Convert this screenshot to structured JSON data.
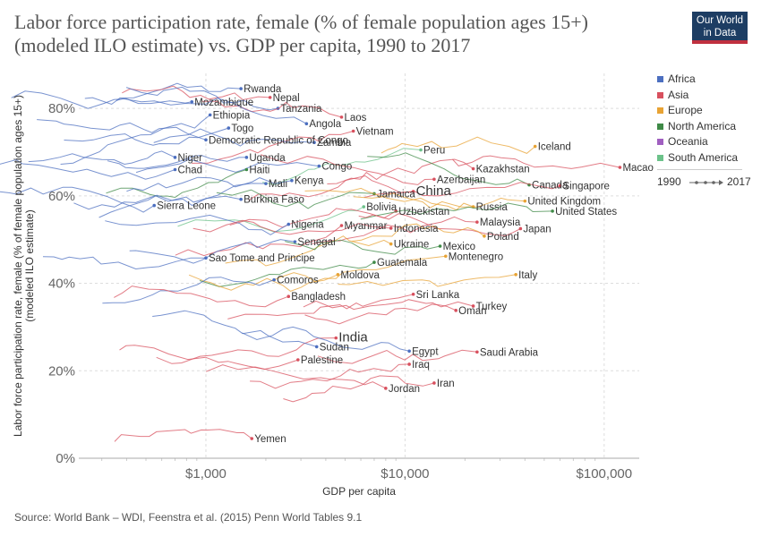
{
  "header": {
    "title": "Labor force participation rate, female (% of female population ages 15+) (modeled ILO estimate) vs. GDP per capita, 1990 to 2017",
    "logo_line1": "Our World",
    "logo_line2": "in Data"
  },
  "footer": {
    "source": "Source: World Bank – WDI, Feenstra et al. (2015) Penn World Tables 9.1"
  },
  "legend": {
    "items": [
      {
        "label": "Africa",
        "color": "#4c6fc0"
      },
      {
        "label": "Asia",
        "color": "#d8505e"
      },
      {
        "label": "Europe",
        "color": "#e8a334"
      },
      {
        "label": "North America",
        "color": "#3f8a47"
      },
      {
        "label": "Oceania",
        "color": "#a05fc0"
      },
      {
        "label": "South America",
        "color": "#6cc28a"
      }
    ],
    "timeline_start": "1990",
    "timeline_end": "2017"
  },
  "chart_data": {
    "type": "scatter",
    "xlabel": "GDP per capita",
    "ylabel": "Labor force participation rate, female (% of female population ages 15+) (modeled ILO estimate)",
    "xscale": "log",
    "xlim": [
      230,
      150000
    ],
    "ylim": [
      0,
      88
    ],
    "x_ticks": [
      {
        "value": 1000,
        "label": "$1,000"
      },
      {
        "value": 10000,
        "label": "$10,000"
      },
      {
        "value": 100000,
        "label": "$100,000"
      }
    ],
    "y_ticks": [
      {
        "value": 0,
        "label": "0%"
      },
      {
        "value": 20,
        "label": "20%"
      },
      {
        "value": 40,
        "label": "40%"
      },
      {
        "value": 60,
        "label": "60%"
      },
      {
        "value": 80,
        "label": "80%"
      }
    ],
    "grid": true,
    "legend_position": "right",
    "countries": [
      {
        "name": "Rwanda",
        "region": "Africa",
        "x": 1500,
        "y": 84.5,
        "big": false
      },
      {
        "name": "Nepal",
        "region": "Asia",
        "x": 2100,
        "y": 82.5,
        "big": false
      },
      {
        "name": "Mozambique",
        "region": "Africa",
        "x": 850,
        "y": 81.5,
        "big": false
      },
      {
        "name": "Tanzania",
        "region": "Africa",
        "x": 2300,
        "y": 80.0,
        "big": false
      },
      {
        "name": "Ethiopia",
        "region": "Africa",
        "x": 1050,
        "y": 78.5,
        "big": false
      },
      {
        "name": "Laos",
        "region": "Asia",
        "x": 4800,
        "y": 78.0,
        "big": false
      },
      {
        "name": "Angola",
        "region": "Africa",
        "x": 3200,
        "y": 76.5,
        "big": false
      },
      {
        "name": "Togo",
        "region": "Africa",
        "x": 1300,
        "y": 75.5,
        "big": false
      },
      {
        "name": "Vietnam",
        "region": "Asia",
        "x": 5500,
        "y": 74.8,
        "big": false
      },
      {
        "name": "Democratic Republic of Congo",
        "region": "Africa",
        "x": 1000,
        "y": 72.8,
        "big": false
      },
      {
        "name": "Zambia",
        "region": "Africa",
        "x": 3500,
        "y": 72.2,
        "big": false
      },
      {
        "name": "Peru",
        "region": "South America",
        "x": 12000,
        "y": 70.5,
        "big": false
      },
      {
        "name": "Iceland",
        "region": "Europe",
        "x": 45000,
        "y": 71.3,
        "big": false
      },
      {
        "name": "Niger",
        "region": "Africa",
        "x": 700,
        "y": 68.8,
        "big": false
      },
      {
        "name": "Uganda",
        "region": "Africa",
        "x": 1600,
        "y": 68.8,
        "big": false
      },
      {
        "name": "Macao",
        "region": "Asia",
        "x": 120000,
        "y": 66.5,
        "big": false
      },
      {
        "name": "Kazakhstan",
        "region": "Asia",
        "x": 22000,
        "y": 66.2,
        "big": false
      },
      {
        "name": "Congo",
        "region": "Africa",
        "x": 3700,
        "y": 66.8,
        "big": false
      },
      {
        "name": "Chad",
        "region": "Africa",
        "x": 700,
        "y": 66.0,
        "big": false
      },
      {
        "name": "Haiti",
        "region": "North America",
        "x": 1600,
        "y": 66.0,
        "big": false
      },
      {
        "name": "Azerbaijan",
        "region": "Asia",
        "x": 14000,
        "y": 63.8,
        "big": false
      },
      {
        "name": "Kenya",
        "region": "Africa",
        "x": 2700,
        "y": 63.5,
        "big": false
      },
      {
        "name": "Mali",
        "region": "Africa",
        "x": 2000,
        "y": 62.8,
        "big": false
      },
      {
        "name": "Canada",
        "region": "North America",
        "x": 42000,
        "y": 62.5,
        "big": false
      },
      {
        "name": "Singapore",
        "region": "Asia",
        "x": 60000,
        "y": 62.3,
        "big": false
      },
      {
        "name": "China",
        "region": "Asia",
        "x": 11000,
        "y": 61.0,
        "big": true
      },
      {
        "name": "Jamaica",
        "region": "North America",
        "x": 7000,
        "y": 60.5,
        "big": false
      },
      {
        "name": "Burkina Faso",
        "region": "Africa",
        "x": 1500,
        "y": 59.2,
        "big": false
      },
      {
        "name": "United Kingdom",
        "region": "Europe",
        "x": 40000,
        "y": 58.8,
        "big": false
      },
      {
        "name": "Sierra Leone",
        "region": "Africa",
        "x": 550,
        "y": 57.8,
        "big": false
      },
      {
        "name": "Bolivia",
        "region": "South America",
        "x": 6200,
        "y": 57.5,
        "big": false
      },
      {
        "name": "Russia",
        "region": "Europe",
        "x": 22000,
        "y": 57.5,
        "big": false
      },
      {
        "name": "Uzbekistan",
        "region": "Asia",
        "x": 9000,
        "y": 56.5,
        "big": false
      },
      {
        "name": "United States",
        "region": "North America",
        "x": 55000,
        "y": 56.5,
        "big": false
      },
      {
        "name": "Malaysia",
        "region": "Asia",
        "x": 23000,
        "y": 54.0,
        "big": false
      },
      {
        "name": "Nigeria",
        "region": "Africa",
        "x": 2600,
        "y": 53.5,
        "big": false
      },
      {
        "name": "Myanmar",
        "region": "Asia",
        "x": 4800,
        "y": 53.2,
        "big": false
      },
      {
        "name": "Indonesia",
        "region": "Asia",
        "x": 8500,
        "y": 52.6,
        "big": false
      },
      {
        "name": "Japan",
        "region": "Asia",
        "x": 38000,
        "y": 52.5,
        "big": false
      },
      {
        "name": "Poland",
        "region": "Europe",
        "x": 25000,
        "y": 50.8,
        "big": false
      },
      {
        "name": "Senegal",
        "region": "Africa",
        "x": 2800,
        "y": 49.5,
        "big": false
      },
      {
        "name": "Ukraine",
        "region": "Europe",
        "x": 8500,
        "y": 49.0,
        "big": false
      },
      {
        "name": "Mexico",
        "region": "North America",
        "x": 15000,
        "y": 48.5,
        "big": false
      },
      {
        "name": "Montenegro",
        "region": "Europe",
        "x": 16000,
        "y": 46.2,
        "big": false
      },
      {
        "name": "Sao Tome and Principe",
        "region": "Africa",
        "x": 1000,
        "y": 45.8,
        "big": false
      },
      {
        "name": "Guatemala",
        "region": "North America",
        "x": 7000,
        "y": 44.8,
        "big": false
      },
      {
        "name": "Italy",
        "region": "Europe",
        "x": 36000,
        "y": 42.0,
        "big": false
      },
      {
        "name": "Moldova",
        "region": "Europe",
        "x": 4600,
        "y": 42.0,
        "big": false
      },
      {
        "name": "Comoros",
        "region": "Africa",
        "x": 2200,
        "y": 40.8,
        "big": false
      },
      {
        "name": "Sri Lanka",
        "region": "Asia",
        "x": 11000,
        "y": 37.5,
        "big": false
      },
      {
        "name": "Bangladesh",
        "region": "Asia",
        "x": 2600,
        "y": 37.0,
        "big": false
      },
      {
        "name": "Turkey",
        "region": "Asia",
        "x": 22000,
        "y": 34.8,
        "big": false
      },
      {
        "name": "Oman",
        "region": "Asia",
        "x": 18000,
        "y": 33.8,
        "big": false
      },
      {
        "name": "India",
        "region": "Asia",
        "x": 4500,
        "y": 27.5,
        "big": true
      },
      {
        "name": "Sudan",
        "region": "Africa",
        "x": 3600,
        "y": 25.5,
        "big": false
      },
      {
        "name": "Egypt",
        "region": "Africa",
        "x": 10500,
        "y": 24.5,
        "big": false
      },
      {
        "name": "Saudi Arabia",
        "region": "Asia",
        "x": 23000,
        "y": 24.3,
        "big": false
      },
      {
        "name": "Palestine",
        "region": "Asia",
        "x": 2900,
        "y": 22.5,
        "big": false
      },
      {
        "name": "Iraq",
        "region": "Asia",
        "x": 10500,
        "y": 21.5,
        "big": false
      },
      {
        "name": "Iran",
        "region": "Asia",
        "x": 14000,
        "y": 17.2,
        "big": false
      },
      {
        "name": "Jordan",
        "region": "Asia",
        "x": 8000,
        "y": 16.0,
        "big": false
      },
      {
        "name": "Yemen",
        "region": "Asia",
        "x": 1700,
        "y": 4.5,
        "big": false
      }
    ]
  }
}
